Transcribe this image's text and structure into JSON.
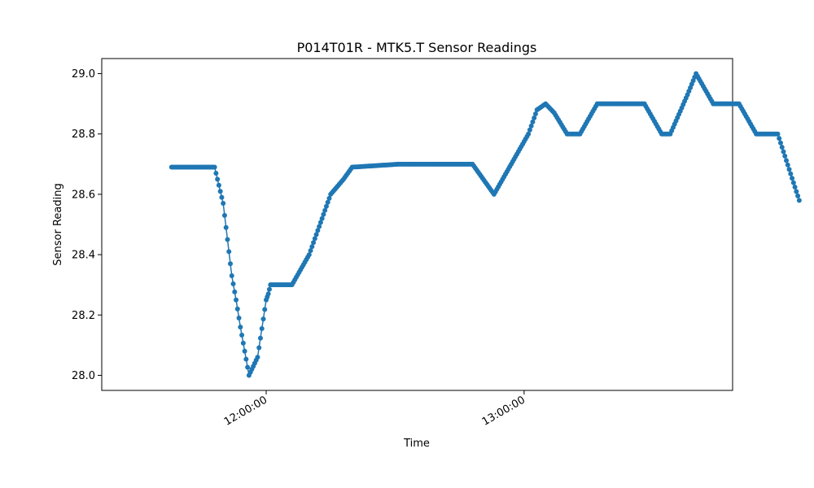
{
  "chart_data": {
    "type": "line",
    "title": "P014T01R - MTK5.T Sensor Readings",
    "xlabel": "Time",
    "ylabel": "Sensor Reading",
    "x_ticks": [
      "12:00:00",
      "13:00:00"
    ],
    "y_ticks": [
      "28.0",
      "28.2",
      "28.4",
      "28.6",
      "28.8",
      "29.0"
    ],
    "ylim": [
      27.95,
      29.05
    ],
    "xlim": [
      "11:21:45",
      "13:48:30"
    ],
    "grid": false,
    "marker": "circle",
    "color": "#1f77b4",
    "series": [
      {
        "values": [
          [
            "11:38:00",
            28.69
          ],
          [
            "11:48:00",
            28.69
          ],
          [
            "11:49:00",
            28.63
          ],
          [
            "11:50:00",
            28.57
          ],
          [
            "11:51:00",
            28.45
          ],
          [
            "11:52:00",
            28.33
          ],
          [
            "11:53:00",
            28.25
          ],
          [
            "11:54:00",
            28.16
          ],
          [
            "11:55:00",
            28.08
          ],
          [
            "11:56:00",
            28.0
          ],
          [
            "11:58:00",
            28.06
          ],
          [
            "12:00:00",
            28.25
          ],
          [
            "12:00:30",
            28.27
          ],
          [
            "12:01:00",
            28.3
          ],
          [
            "12:06:00",
            28.3
          ],
          [
            "12:10:00",
            28.4
          ],
          [
            "12:14:00",
            28.56
          ],
          [
            "12:15:00",
            28.6
          ],
          [
            "12:18:00",
            28.65
          ],
          [
            "12:20:00",
            28.69
          ],
          [
            "12:31:00",
            28.7
          ],
          [
            "12:48:00",
            28.7
          ],
          [
            "12:50:00",
            28.66
          ],
          [
            "12:53:00",
            28.6
          ],
          [
            "12:57:00",
            28.7
          ],
          [
            "12:61:00",
            28.8
          ],
          [
            "13:03:00",
            28.88
          ],
          [
            "13:05:00",
            28.9
          ],
          [
            "13:07:00",
            28.87
          ],
          [
            "13:10:00",
            28.8
          ],
          [
            "13:13:00",
            28.8
          ],
          [
            "13:17:00",
            28.9
          ],
          [
            "13:28:00",
            28.9
          ],
          [
            "13:32:00",
            28.8
          ],
          [
            "13:34:00",
            28.8
          ],
          [
            "13:38:00",
            28.93
          ],
          [
            "13:40:00",
            29.0
          ],
          [
            "13:42:00",
            28.95
          ],
          [
            "13:44:00",
            28.9
          ],
          [
            "13:50:00",
            28.9
          ],
          [
            "13:54:00",
            28.8
          ],
          [
            "13:59:00",
            28.8
          ],
          [
            "14:04:00",
            28.58
          ]
        ]
      }
    ]
  }
}
